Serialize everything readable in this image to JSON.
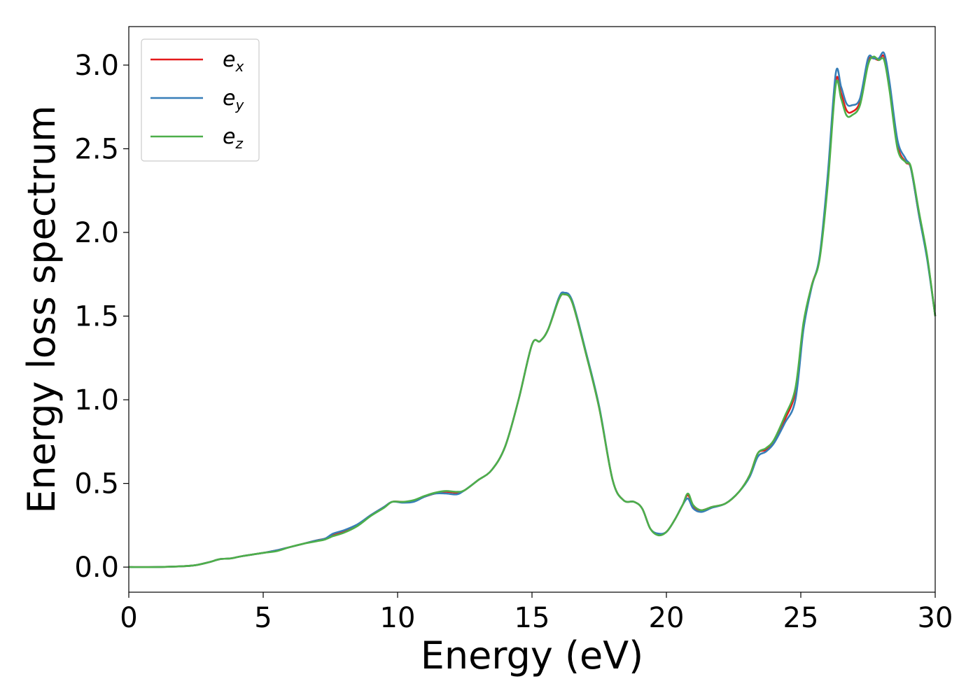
{
  "chart_data": {
    "type": "line",
    "title": "",
    "xlabel": "Energy (eV)",
    "ylabel": "Energy loss spectrum",
    "xlim": [
      0,
      30
    ],
    "ylim": [
      -0.15,
      3.23
    ],
    "xticks": [
      0,
      5,
      10,
      15,
      20,
      25,
      30
    ],
    "xtick_labels": [
      "0",
      "5",
      "10",
      "15",
      "20",
      "25",
      "30"
    ],
    "yticks": [
      0.0,
      0.5,
      1.0,
      1.5,
      2.0,
      2.5,
      3.0
    ],
    "ytick_labels": [
      "0.0",
      "0.5",
      "1.0",
      "1.5",
      "2.0",
      "2.5",
      "3.0"
    ],
    "grid": false,
    "legend_position": "top-left",
    "x": [
      0,
      1,
      2,
      2.5,
      3,
      3.4,
      3.8,
      4.2,
      5,
      5.5,
      6,
      6.5,
      7,
      7.3,
      7.6,
      8,
      8.5,
      9,
      9.5,
      9.8,
      10.2,
      10.6,
      11,
      11.4,
      11.8,
      12.2,
      12.5,
      13,
      13.5,
      14,
      14.5,
      15,
      15.3,
      15.6,
      16,
      16.2,
      16.5,
      17,
      17.5,
      18,
      18.4,
      18.8,
      19.1,
      19.4,
      19.7,
      20,
      20.3,
      20.6,
      20.8,
      21,
      21.3,
      21.7,
      22.2,
      22.7,
      23.1,
      23.4,
      23.7,
      24,
      24.4,
      24.8,
      25.1,
      25.4,
      25.7,
      26,
      26.3,
      26.5,
      26.7,
      26.9,
      27.2,
      27.5,
      27.7,
      27.9,
      28.1,
      28.3,
      28.6,
      28.9,
      29.1,
      29.4,
      29.7,
      30
    ],
    "series": [
      {
        "name": "e",
        "subscript": "x",
        "color": "#e41a1c",
        "values": [
          0.0,
          0.0,
          0.005,
          0.012,
          0.03,
          0.048,
          0.052,
          0.065,
          0.085,
          0.1,
          0.12,
          0.14,
          0.16,
          0.17,
          0.19,
          0.21,
          0.25,
          0.31,
          0.36,
          0.39,
          0.39,
          0.395,
          0.42,
          0.44,
          0.45,
          0.445,
          0.46,
          0.52,
          0.58,
          0.72,
          1.0,
          1.33,
          1.35,
          1.42,
          1.6,
          1.63,
          1.58,
          1.28,
          0.95,
          0.52,
          0.4,
          0.39,
          0.35,
          0.23,
          0.195,
          0.21,
          0.28,
          0.37,
          0.43,
          0.36,
          0.34,
          0.36,
          0.38,
          0.45,
          0.55,
          0.68,
          0.7,
          0.75,
          0.88,
          1.05,
          1.45,
          1.68,
          1.85,
          2.3,
          2.9,
          2.83,
          2.73,
          2.72,
          2.78,
          3.02,
          3.04,
          3.03,
          3.05,
          2.87,
          2.52,
          2.42,
          2.38,
          2.1,
          1.85,
          1.5
        ]
      },
      {
        "name": "e",
        "subscript": "y",
        "color": "#377eb8",
        "values": [
          0.0,
          0.0,
          0.005,
          0.012,
          0.03,
          0.048,
          0.052,
          0.065,
          0.085,
          0.1,
          0.12,
          0.14,
          0.16,
          0.17,
          0.2,
          0.22,
          0.255,
          0.31,
          0.36,
          0.39,
          0.385,
          0.39,
          0.42,
          0.44,
          0.44,
          0.435,
          0.46,
          0.52,
          0.58,
          0.72,
          1.0,
          1.33,
          1.35,
          1.42,
          1.61,
          1.64,
          1.59,
          1.29,
          0.96,
          0.52,
          0.4,
          0.39,
          0.35,
          0.23,
          0.2,
          0.21,
          0.28,
          0.37,
          0.41,
          0.35,
          0.33,
          0.355,
          0.38,
          0.45,
          0.54,
          0.66,
          0.69,
          0.74,
          0.86,
          1.0,
          1.42,
          1.67,
          1.86,
          2.34,
          2.95,
          2.87,
          2.77,
          2.76,
          2.8,
          3.04,
          3.04,
          3.04,
          3.07,
          2.9,
          2.55,
          2.44,
          2.38,
          2.1,
          1.84,
          1.5
        ]
      },
      {
        "name": "e",
        "subscript": "z",
        "color": "#4daf4a",
        "values": [
          0.0,
          0.0,
          0.005,
          0.012,
          0.03,
          0.048,
          0.052,
          0.065,
          0.085,
          0.095,
          0.12,
          0.14,
          0.155,
          0.165,
          0.185,
          0.205,
          0.245,
          0.305,
          0.355,
          0.39,
          0.39,
          0.4,
          0.425,
          0.445,
          0.455,
          0.45,
          0.46,
          0.52,
          0.58,
          0.72,
          1.0,
          1.33,
          1.35,
          1.42,
          1.6,
          1.63,
          1.58,
          1.28,
          0.95,
          0.52,
          0.4,
          0.39,
          0.35,
          0.23,
          0.19,
          0.21,
          0.28,
          0.37,
          0.44,
          0.37,
          0.34,
          0.36,
          0.38,
          0.45,
          0.55,
          0.68,
          0.71,
          0.76,
          0.9,
          1.07,
          1.46,
          1.68,
          1.84,
          2.28,
          2.88,
          2.8,
          2.7,
          2.7,
          2.76,
          3.0,
          3.05,
          3.03,
          3.03,
          2.85,
          2.5,
          2.42,
          2.39,
          2.12,
          1.86,
          1.5
        ]
      }
    ]
  }
}
